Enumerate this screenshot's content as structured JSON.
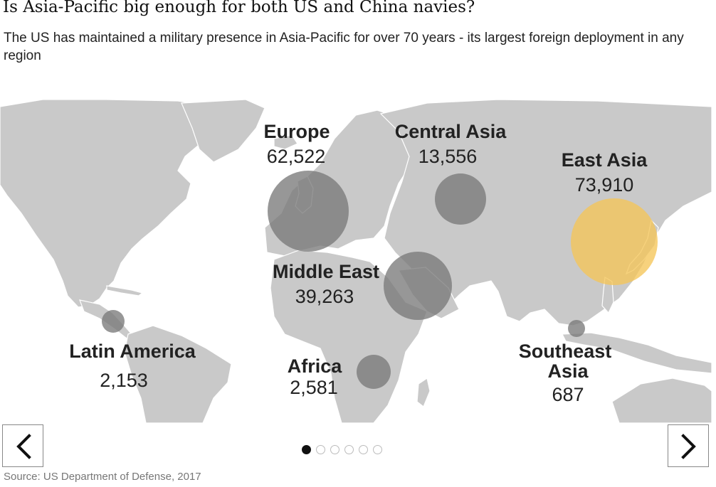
{
  "title": "Is Asia-Pacific big enough for both US and China navies?",
  "subtitle": "The US has maintained a military presence in Asia-Pacific for over 70 years - its largest foreign deployment in any region",
  "colors": {
    "land": "#c9c9c9",
    "bubble": "#7a7a7a",
    "highlight": "#f5c558"
  },
  "regions": [
    {
      "name": "Europe",
      "value": "62,522",
      "troops": 62522
    },
    {
      "name": "Central Asia",
      "value": "13,556",
      "troops": 13556
    },
    {
      "name": "East Asia",
      "value": "73,910",
      "troops": 73910,
      "highlighted": true
    },
    {
      "name": "Middle East",
      "value": "39,263",
      "troops": 39263
    },
    {
      "name": "Latin America",
      "value": "2,153",
      "troops": 2153
    },
    {
      "name": "Africa",
      "value": "2,581",
      "troops": 2581
    },
    {
      "name": "Southeast Asia",
      "name_lines": [
        "Southeast",
        "Asia"
      ],
      "value": "687",
      "troops": 687
    }
  ],
  "carousel": {
    "slides": 6,
    "active_index": 0,
    "prev_icon": "chevron-left-icon",
    "next_icon": "chevron-right-icon"
  },
  "source": "Source: US Department of Defense, 2017"
}
